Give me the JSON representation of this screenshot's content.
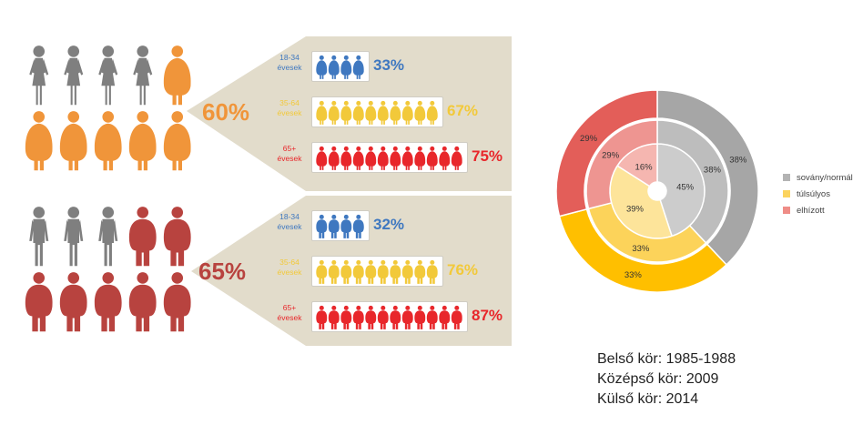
{
  "colors": {
    "grey_figure": "#7f7f7f",
    "women_accent": "#f0953a",
    "men_accent": "#b8433f",
    "panel_bg": "#e2dccb",
    "age_young": "#3f78c0",
    "age_middle": "#f2c93a",
    "age_old": "#e8272b"
  },
  "icons": {
    "woman": "woman-figure-icon",
    "man": "man-figure-icon"
  },
  "women": {
    "percentage": "60%",
    "total_figures": 10,
    "highlighted_figures": 6,
    "age_groups": [
      {
        "label_line1": "18-34",
        "label_line2": "évesek",
        "value": "33%",
        "figures": 4,
        "color": "#3f78c0"
      },
      {
        "label_line1": "35-64",
        "label_line2": "évesek",
        "value": "67%",
        "figures": 10,
        "color": "#f2c93a"
      },
      {
        "label_line1": "65+",
        "label_line2": "évesek",
        "value": "75%",
        "figures": 12,
        "color": "#e8272b"
      }
    ]
  },
  "men": {
    "percentage": "65%",
    "total_figures": 10,
    "highlighted_figures": 7,
    "age_groups": [
      {
        "label_line1": "18-34",
        "label_line2": "évesek",
        "value": "32%",
        "figures": 4,
        "color": "#3f78c0"
      },
      {
        "label_line1": "35-64",
        "label_line2": "évesek",
        "value": "76%",
        "figures": 10,
        "color": "#f2c93a"
      },
      {
        "label_line1": "65+",
        "label_line2": "évesek",
        "value": "87%",
        "figures": 12,
        "color": "#e8272b"
      }
    ]
  },
  "chart_data": [
    {
      "type": "bar",
      "categories": [
        "18-34 évesek",
        "35-64 évesek",
        "65+ évesek"
      ],
      "series": [
        {
          "values": [
            33,
            67,
            75
          ]
        }
      ],
      "headline": "60%"
    },
    {
      "type": "bar",
      "categories": [
        "18-34 évesek",
        "35-64 évesek",
        "65+ évesek"
      ],
      "series": [
        {
          "values": [
            32,
            76,
            87
          ]
        }
      ],
      "headline": "65%"
    },
    {
      "type": "pie",
      "categories": [
        "sovány/normál",
        "túlsúlyos",
        "elhízott"
      ],
      "colors": [
        "#b3b3b3",
        "#fbd35e",
        "#ef8d87"
      ],
      "rings": [
        {
          "name": "Belső kör: 1985-1988",
          "values": [
            45,
            39,
            16
          ],
          "colors": [
            "#cccccc",
            "#fde49a",
            "#f5b6b0"
          ]
        },
        {
          "name": "Középső kör: 2009",
          "values": [
            38,
            33,
            29
          ],
          "colors": [
            "#bdbdbd",
            "#fcd35a",
            "#ee9591"
          ]
        },
        {
          "name": "Külső kör: 2014",
          "values": [
            38,
            33,
            29
          ],
          "colors": [
            "#a6a6a6",
            "#ffbf00",
            "#e35e59"
          ]
        }
      ],
      "legend": [
        "sovány/normál",
        "túlsúlyos",
        "elhízott"
      ],
      "legend_position": "right"
    }
  ],
  "ring_notes": [
    "Belső kör: 1985-1988",
    "Középső kör: 2009",
    "Külső kör: 2014"
  ]
}
